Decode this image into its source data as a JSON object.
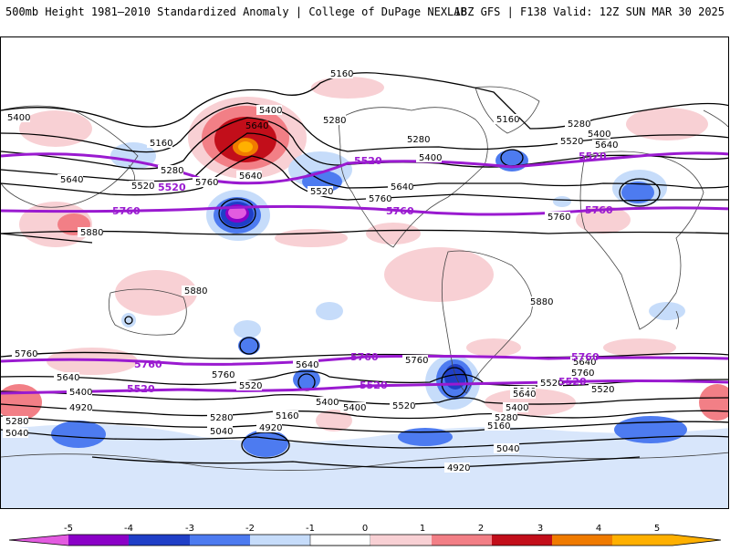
{
  "title": {
    "left": "500mb Height 1981–2010 Standardized Anomaly | College of DuPage NEXLAB",
    "right": "18Z GFS | F138 Valid: 12Z SUN MAR 30 2025"
  },
  "colors": {
    "neg5": "#e35be0",
    "neg4": "#8b00c7",
    "neg3": "#1f3fc7",
    "neg2": "#4d7bf0",
    "neg1": "#c6dcfa",
    "zero": "#ffffff",
    "pos1": "#f8d0d4",
    "pos2": "#f27f86",
    "pos3": "#c20e1a",
    "pos4": "#f07b00",
    "pos5": "#ffb000",
    "contour": "#000000",
    "thick": "#9a1ad0",
    "antarctica": "#d8e6fb"
  },
  "colorbar": {
    "ticks": [
      "-5",
      "-4",
      "-3",
      "-2",
      "-1",
      "0",
      "1",
      "2",
      "3",
      "4",
      "5"
    ]
  },
  "contour_labels": [
    "5160",
    "5400",
    "5640",
    "5400",
    "5280",
    "5160",
    "5280",
    "5640",
    "5520",
    "5760",
    "5520",
    "5400",
    "5640",
    "5760",
    "5280",
    "5160",
    "5280",
    "5520",
    "5640",
    "5400",
    "5640",
    "5760",
    "5880",
    "5880",
    "5880",
    "5760",
    "5640",
    "5400",
    "4920",
    "5280",
    "5040",
    "5760",
    "5640",
    "5520",
    "5280",
    "5040",
    "4920",
    "5160",
    "5400",
    "5520",
    "5760",
    "5640",
    "5400",
    "5280",
    "5160",
    "5040",
    "4920",
    "5760",
    "5640",
    "5520",
    "5400",
    "5520",
    "5640"
  ],
  "thick_labels": {
    "nh": [
      "5520",
      "5760",
      "5520",
      "5760",
      "5520",
      "5760"
    ],
    "sh": [
      "5760",
      "5520",
      "5760",
      "5520",
      "5760",
      "5520"
    ]
  }
}
